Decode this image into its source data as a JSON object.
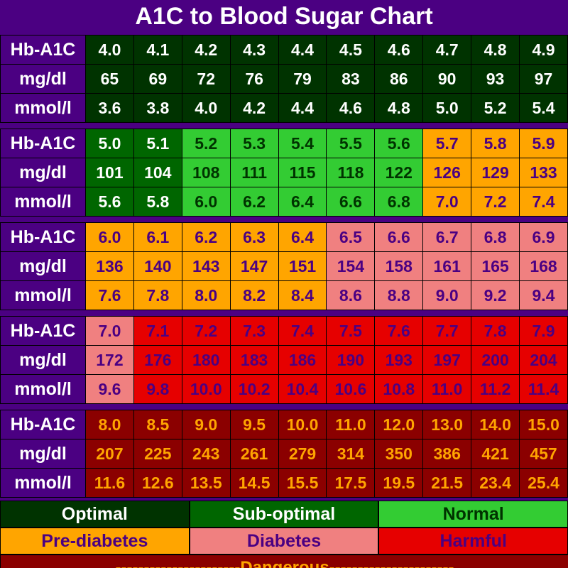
{
  "title": "A1C to Blood Sugar Chart",
  "colors": {
    "bg": "#4b0082",
    "title_text": "#ffffff",
    "rowhead_bg": "#4b0082",
    "rowhead_text": "#ffffff",
    "optimal": {
      "bg": "#003300",
      "text": "#ffffff"
    },
    "suboptimal": {
      "bg": "#006600",
      "text": "#ffffff"
    },
    "normal": {
      "bg": "#33cc33",
      "text": "#003300"
    },
    "prediabetes": {
      "bg": "#ffa500",
      "text": "#4b0082"
    },
    "diabetes": {
      "bg": "#f08080",
      "text": "#4b0082"
    },
    "harmful": {
      "bg": "#e60000",
      "text": "#4b0082"
    },
    "dangerous": {
      "bg": "#8b0000",
      "text": "#ffa500"
    }
  },
  "row_labels": [
    "Hb-A1C",
    "mg/dl",
    "mmol/l"
  ],
  "bands": [
    {
      "a1c": [
        "4.0",
        "4.1",
        "4.2",
        "4.3",
        "4.4",
        "4.5",
        "4.6",
        "4.7",
        "4.8",
        "4.9"
      ],
      "mgdl": [
        "65",
        "69",
        "72",
        "76",
        "79",
        "83",
        "86",
        "90",
        "93",
        "97"
      ],
      "mmoll": [
        "3.6",
        "3.8",
        "4.0",
        "4.2",
        "4.4",
        "4.6",
        "4.8",
        "5.0",
        "5.2",
        "5.4"
      ],
      "zones": [
        "optimal",
        "optimal",
        "optimal",
        "optimal",
        "optimal",
        "optimal",
        "optimal",
        "optimal",
        "optimal",
        "optimal"
      ]
    },
    {
      "a1c": [
        "5.0",
        "5.1",
        "5.2",
        "5.3",
        "5.4",
        "5.5",
        "5.6",
        "5.7",
        "5.8",
        "5.9"
      ],
      "mgdl": [
        "101",
        "104",
        "108",
        "111",
        "115",
        "118",
        "122",
        "126",
        "129",
        "133"
      ],
      "mmoll": [
        "5.6",
        "5.8",
        "6.0",
        "6.2",
        "6.4",
        "6.6",
        "6.8",
        "7.0",
        "7.2",
        "7.4"
      ],
      "zones": [
        "suboptimal",
        "suboptimal",
        "normal",
        "normal",
        "normal",
        "normal",
        "normal",
        "prediabetes",
        "prediabetes",
        "prediabetes"
      ]
    },
    {
      "a1c": [
        "6.0",
        "6.1",
        "6.2",
        "6.3",
        "6.4",
        "6.5",
        "6.6",
        "6.7",
        "6.8",
        "6.9"
      ],
      "mgdl": [
        "136",
        "140",
        "143",
        "147",
        "151",
        "154",
        "158",
        "161",
        "165",
        "168"
      ],
      "mmoll": [
        "7.6",
        "7.8",
        "8.0",
        "8.2",
        "8.4",
        "8.6",
        "8.8",
        "9.0",
        "9.2",
        "9.4"
      ],
      "zones": [
        "prediabetes",
        "prediabetes",
        "prediabetes",
        "prediabetes",
        "prediabetes",
        "diabetes",
        "diabetes",
        "diabetes",
        "diabetes",
        "diabetes"
      ]
    },
    {
      "a1c": [
        "7.0",
        "7.1",
        "7.2",
        "7.3",
        "7.4",
        "7.5",
        "7.6",
        "7.7",
        "7.8",
        "7.9"
      ],
      "mgdl": [
        "172",
        "176",
        "180",
        "183",
        "186",
        "190",
        "193",
        "197",
        "200",
        "204"
      ],
      "mmoll": [
        "9.6",
        "9.8",
        "10.0",
        "10.2",
        "10.4",
        "10.6",
        "10.8",
        "11.0",
        "11.2",
        "11.4"
      ],
      "zones": [
        "diabetes",
        "harmful",
        "harmful",
        "harmful",
        "harmful",
        "harmful",
        "harmful",
        "harmful",
        "harmful",
        "harmful"
      ]
    },
    {
      "a1c": [
        "8.0",
        "8.5",
        "9.0",
        "9.5",
        "10.0",
        "11.0",
        "12.0",
        "13.0",
        "14.0",
        "15.0"
      ],
      "mgdl": [
        "207",
        "225",
        "243",
        "261",
        "279",
        "314",
        "350",
        "386",
        "421",
        "457"
      ],
      "mmoll": [
        "11.6",
        "12.6",
        "13.5",
        "14.5",
        "15.5",
        "17.5",
        "19.5",
        "21.5",
        "23.4",
        "25.4"
      ],
      "zones": [
        "dangerous",
        "dangerous",
        "dangerous",
        "dangerous",
        "dangerous",
        "dangerous",
        "dangerous",
        "dangerous",
        "dangerous",
        "dangerous"
      ]
    }
  ],
  "legend": {
    "row1": [
      {
        "label": "Optimal",
        "zone": "optimal"
      },
      {
        "label": "Sub-optimal",
        "zone": "suboptimal"
      },
      {
        "label": "Normal",
        "zone": "normal"
      }
    ],
    "row2": [
      {
        "label": "Pre-diabetes",
        "zone": "prediabetes"
      },
      {
        "label": "Diabetes",
        "zone": "diabetes"
      },
      {
        "label": "Harmful",
        "zone": "harmful"
      }
    ],
    "row3": {
      "label": "----------------------Dangerous----------------------",
      "zone": "dangerous"
    }
  }
}
